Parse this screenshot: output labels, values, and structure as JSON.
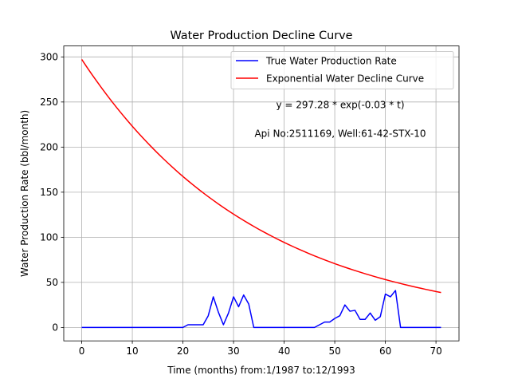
{
  "chart_data": {
    "type": "line",
    "title": "Water Production Decline Curve",
    "xlabel": "Time (months) from:1/1987 to:12/1993",
    "ylabel": "Water Production Rate (bbl/month)",
    "xlim": [
      -3.55,
      74.55
    ],
    "ylim": [
      -14.86,
      312.14
    ],
    "xticks": [
      0,
      10,
      20,
      30,
      40,
      50,
      60,
      70
    ],
    "yticks": [
      0,
      50,
      100,
      150,
      200,
      250,
      300
    ],
    "grid": true,
    "legend_position": "top-right",
    "annotations": [
      "y = 297.28 * exp(-0.03 * t)",
      "Api No:2511169, Well:61-42-STX-10"
    ],
    "series": [
      {
        "name": "True Water Production Rate",
        "color": "#0000ff",
        "x": [
          0,
          1,
          2,
          3,
          4,
          5,
          6,
          7,
          8,
          9,
          10,
          11,
          12,
          13,
          14,
          15,
          16,
          17,
          18,
          19,
          20,
          21,
          22,
          23,
          24,
          25,
          26,
          27,
          28,
          29,
          30,
          31,
          32,
          33,
          34,
          35,
          36,
          37,
          38,
          39,
          40,
          41,
          42,
          43,
          44,
          45,
          46,
          47,
          48,
          49,
          50,
          51,
          52,
          53,
          54,
          55,
          56,
          57,
          58,
          59,
          60,
          61,
          62,
          63,
          64,
          65,
          66,
          67,
          68,
          69,
          70,
          71
        ],
        "y": [
          0,
          0,
          0,
          0,
          0,
          0,
          0,
          0,
          0,
          0,
          0,
          0,
          0,
          0,
          0,
          0,
          0,
          0,
          0,
          0,
          0,
          3,
          3,
          3,
          3,
          13,
          34,
          17,
          3,
          16,
          34,
          23,
          36,
          26,
          0,
          0,
          0,
          0,
          0,
          0,
          0,
          0,
          0,
          0,
          0,
          0,
          0,
          3,
          6,
          6,
          10,
          13,
          25,
          18,
          19,
          9,
          9,
          16,
          8,
          12,
          37,
          34,
          41,
          0,
          0,
          0,
          0,
          0,
          0,
          0,
          0,
          0
        ]
      },
      {
        "name": "Exponential Water Decline Curve",
        "color": "#ff0000",
        "formula": {
          "a": 297.28,
          "b": 0.0287
        },
        "x_range": [
          0,
          71
        ]
      }
    ]
  }
}
